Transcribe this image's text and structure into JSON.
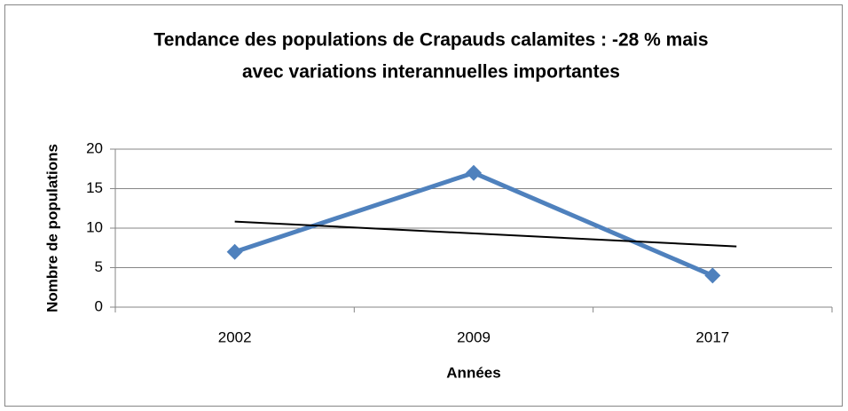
{
  "chart_data": {
    "type": "line",
    "title": [
      "Tendance des populations de Crapauds calamites : -28 % mais",
      "avec variations interannuelles importantes"
    ],
    "x_label": "Années",
    "y_label": "Nombre de populations",
    "categories": [
      "2002",
      "2009",
      "2017"
    ],
    "series": [
      {
        "color": "#4f81bd",
        "values": [
          7,
          17,
          4
        ]
      }
    ],
    "trendline": {
      "type": "linear",
      "color": "#000000"
    },
    "ylim": [
      0,
      20
    ],
    "yticks": [
      0,
      5,
      10,
      15,
      20
    ],
    "grid": true
  }
}
